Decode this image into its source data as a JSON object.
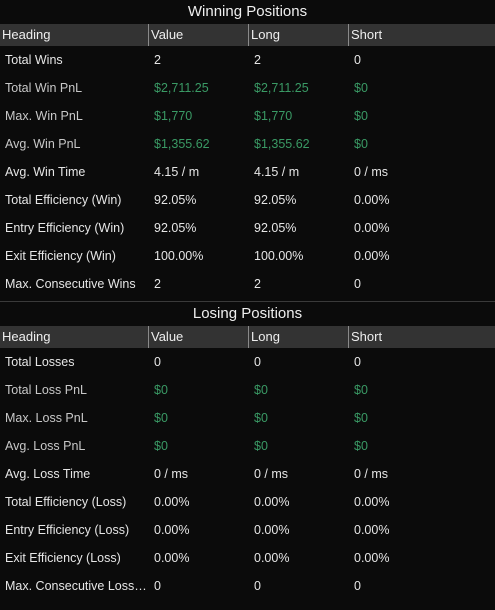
{
  "colors": {
    "background": "#0b0b0b",
    "header_bg": "#333333",
    "money": "#3a9a65",
    "text": "#e6e6e6"
  },
  "winning": {
    "title": "Winning Positions",
    "columns": [
      "Heading",
      "Value",
      "Long",
      "Short"
    ],
    "rows": [
      {
        "label": "Total Wins",
        "value": "2",
        "long": "2",
        "short": "0",
        "style": "plain"
      },
      {
        "label": "Total Win PnL",
        "value": "$2,711.25",
        "long": "$2,711.25",
        "short": "$0",
        "style": "money"
      },
      {
        "label": "Max. Win PnL",
        "value": "$1,770",
        "long": "$1,770",
        "short": "$0",
        "style": "money"
      },
      {
        "label": "Avg. Win PnL",
        "value": "$1,355.62",
        "long": "$1,355.62",
        "short": "$0",
        "style": "money"
      },
      {
        "label": "Avg. Win Time",
        "value": "4.15 / m",
        "long": "4.15 / m",
        "short": "0 / ms",
        "style": "plain"
      },
      {
        "label": "Total Efficiency (Win)",
        "value": "92.05%",
        "long": "92.05%",
        "short": "0.00%",
        "style": "plain"
      },
      {
        "label": "Entry Efficiency (Win)",
        "value": "92.05%",
        "long": "92.05%",
        "short": "0.00%",
        "style": "plain"
      },
      {
        "label": "Exit Efficiency (Win)",
        "value": "100.00%",
        "long": "100.00%",
        "short": "0.00%",
        "style": "plain"
      },
      {
        "label": "Max. Consecutive Wins",
        "value": "2",
        "long": "2",
        "short": "0",
        "style": "plain"
      }
    ]
  },
  "losing": {
    "title": "Losing Positions",
    "columns": [
      "Heading",
      "Value",
      "Long",
      "Short"
    ],
    "rows": [
      {
        "label": "Total Losses",
        "value": "0",
        "long": "0",
        "short": "0",
        "style": "plain"
      },
      {
        "label": "Total Loss PnL",
        "value": "$0",
        "long": "$0",
        "short": "$0",
        "style": "money"
      },
      {
        "label": "Max. Loss PnL",
        "value": "$0",
        "long": "$0",
        "short": "$0",
        "style": "money"
      },
      {
        "label": "Avg. Loss PnL",
        "value": "$0",
        "long": "$0",
        "short": "$0",
        "style": "money"
      },
      {
        "label": "Avg. Loss Time",
        "value": "0 / ms",
        "long": "0 / ms",
        "short": "0 / ms",
        "style": "plain"
      },
      {
        "label": "Total Efficiency (Loss)",
        "value": "0.00%",
        "long": "0.00%",
        "short": "0.00%",
        "style": "plain"
      },
      {
        "label": "Entry Efficiency (Loss)",
        "value": "0.00%",
        "long": "0.00%",
        "short": "0.00%",
        "style": "plain"
      },
      {
        "label": "Exit Efficiency (Loss)",
        "value": "0.00%",
        "long": "0.00%",
        "short": "0.00%",
        "style": "plain"
      },
      {
        "label": "Max. Consecutive Losses",
        "value": "0",
        "long": "0",
        "short": "0",
        "style": "plain"
      }
    ]
  }
}
